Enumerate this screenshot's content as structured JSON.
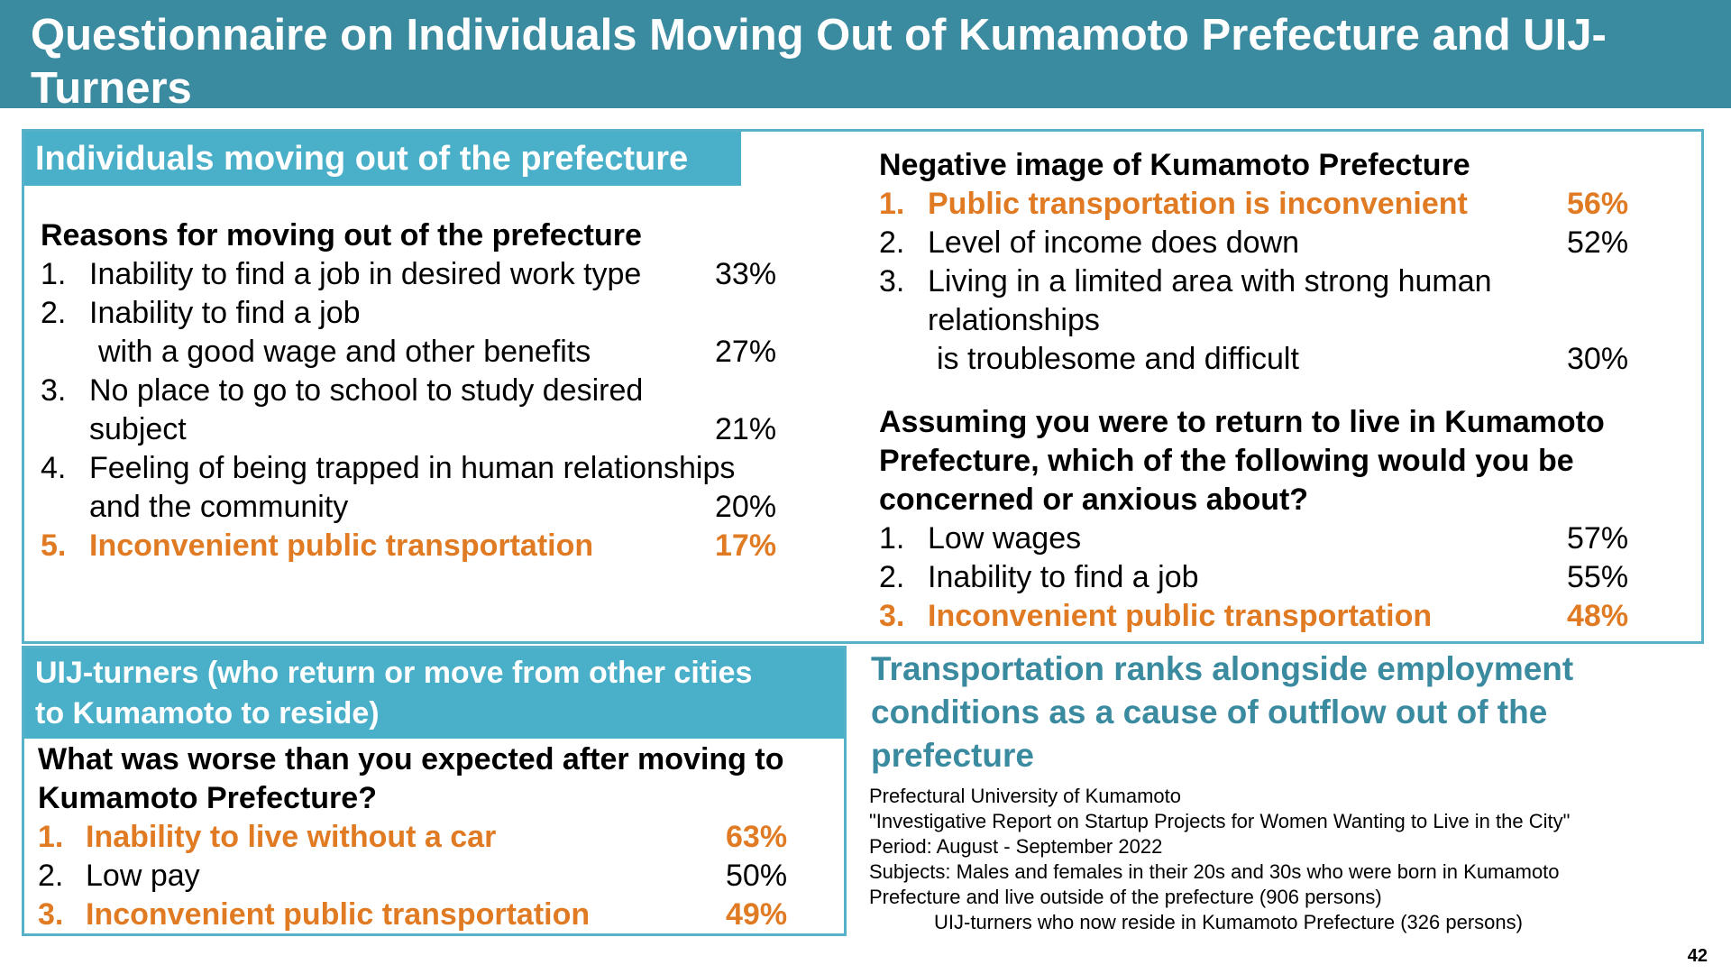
{
  "title": "Questionnaire on Individuals Moving Out of Kumamoto Prefecture and UIJ-Turners",
  "colors": {
    "title_bar": "#3a8aa0",
    "section_header": "#4aafc8",
    "panel_border": "#57b1c9",
    "highlight": "#e07b24",
    "conclusion_text": "#3a8aa0"
  },
  "moving_out": {
    "header": "Individuals moving out of the prefecture",
    "reasons_heading": "Reasons for moving out of the prefecture",
    "reasons": [
      {
        "num": "1.",
        "lines": [
          "Inability to find a job in desired work type"
        ],
        "pct": "33%"
      },
      {
        "num": "2.",
        "lines": [
          "Inability to find a job",
          "with a good wage and other benefits"
        ],
        "pct": "27%"
      },
      {
        "num": "3.",
        "lines": [
          "No place to go to school to study desired",
          "subject"
        ],
        "pct": "21%"
      },
      {
        "num": "4.",
        "lines": [
          "Feeling of being trapped in human relationships",
          "and the community"
        ],
        "pct": "20%"
      },
      {
        "num": "5.",
        "lines": [
          "Inconvenient public transportation"
        ],
        "pct": "17%"
      }
    ],
    "negative_heading": "Negative image of Kumamoto Prefecture",
    "negative_items": [
      {
        "num": "1.",
        "lines": [
          "Public transportation is inconvenient"
        ],
        "pct": "56%"
      },
      {
        "num": "2.",
        "lines": [
          "Level of income does down"
        ],
        "pct": "52%"
      },
      {
        "num": "3.",
        "lines": [
          "Living in a limited area with strong human",
          "relationships",
          "is troublesome and difficult"
        ],
        "pct": "30%"
      }
    ],
    "return_heading_lines": [
      "Assuming you were to return to live in Kumamoto",
      "Prefecture, which of the following would you be",
      "concerned or anxious about?"
    ],
    "return_items": [
      {
        "num": "1.",
        "lines": [
          "Low wages"
        ],
        "pct": "57%"
      },
      {
        "num": "2.",
        "lines": [
          "Inability to find a job"
        ],
        "pct": "55%"
      },
      {
        "num": "3.",
        "lines": [
          "Inconvenient public transportation"
        ],
        "pct": "48%"
      }
    ]
  },
  "uij": {
    "header_lines": [
      "UIJ-turners (who return or move from other cities",
      "to Kumamoto to reside)"
    ],
    "question_lines": [
      "What was worse than you expected after moving to",
      "Kumamoto Prefecture?"
    ],
    "items": [
      {
        "num": "1.",
        "lines": [
          "Inability to live without a car"
        ],
        "pct": "63%"
      },
      {
        "num": "2.",
        "lines": [
          "Low pay"
        ],
        "pct": "50%"
      },
      {
        "num": "3.",
        "lines": [
          "Inconvenient public transportation"
        ],
        "pct": "49%"
      }
    ]
  },
  "conclusion_lines": [
    "Transportation ranks alongside employment",
    "conditions as a cause of outflow out of the",
    "prefecture"
  ],
  "source": {
    "institution": "Prefectural University of Kumamoto",
    "report": "\"Investigative Report on Startup Projects for Women Wanting to Live in the City\"",
    "period": "Period: August - September 2022",
    "subjects_line1": "Subjects: Males and females in their 20s and 30s who were born in Kumamoto",
    "subjects_line2": "Prefecture and live outside of the prefecture (906 persons)",
    "subjects_line3": "UIJ-turners who now reside in Kumamoto Prefecture (326 persons)"
  },
  "page_number": "42"
}
